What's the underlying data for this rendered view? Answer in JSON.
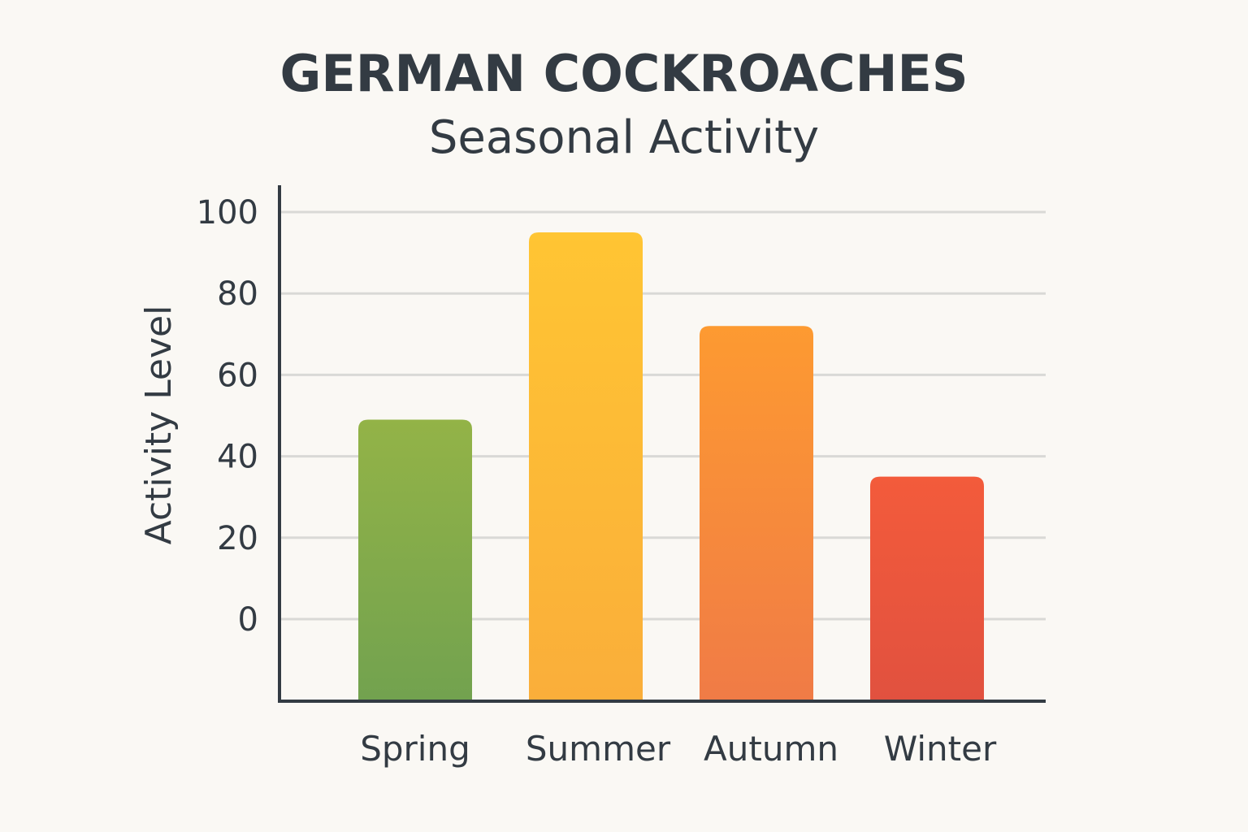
{
  "chart_data": {
    "type": "bar",
    "title": "GERMAN COCKROACHES",
    "subtitle": "Seasonal Activity",
    "xlabel": "",
    "ylabel": "Activity Level",
    "categories": [
      "Spring",
      "Summer",
      "Autumn",
      "Winter"
    ],
    "values": [
      49,
      95,
      72,
      35
    ],
    "ylim": [
      -20,
      100
    ],
    "yticks": [
      0,
      20,
      40,
      60,
      80,
      100
    ],
    "ytick_labels": [
      "0",
      "20",
      "40",
      "60",
      "80",
      "100"
    ],
    "grid": true,
    "legend": "none",
    "bar_colors": [
      {
        "top": "#93b347",
        "bottom": "#72a24f"
      },
      {
        "top": "#ffc533",
        "bottom": "#faae3a"
      },
      {
        "top": "#fd9a31",
        "bottom": "#f07b46"
      },
      {
        "top": "#f35b3b",
        "bottom": "#e1513f"
      }
    ]
  }
}
